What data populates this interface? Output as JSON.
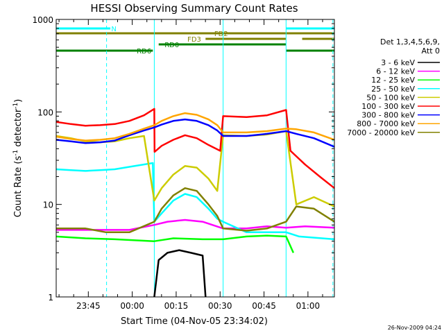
{
  "chart_data": {
    "type": "line",
    "title": "HESSI Observing Summary Count Rates",
    "xlabel": "Start Time (04-Nov-05 23:34:02)",
    "ylabel_main": "Count Rate (s",
    "ylabel_sup1": "-1",
    "ylabel_mid": " detector",
    "ylabel_sup2": "-1",
    "ylabel_end": ")",
    "y_scale": "log",
    "ylim": [
      1,
      1000
    ],
    "xlim_minutes_after_23_34_02": [
      0,
      95
    ],
    "x_ticks": [
      {
        "label": "23:45",
        "min": 10.97
      },
      {
        "label": "00:00",
        "min": 25.97
      },
      {
        "label": "00:15",
        "min": 40.97
      },
      {
        "label": "00:30",
        "min": 55.97
      },
      {
        "label": "00:45",
        "min": 70.97
      },
      {
        "label": "01:00",
        "min": 85.97
      }
    ],
    "y_ticks": [
      {
        "label": "1",
        "value": 1
      },
      {
        "label": "10",
        "value": 10
      },
      {
        "label": "100",
        "value": 100
      },
      {
        "label": "1000",
        "value": 1000
      }
    ],
    "legend": {
      "placement": "right",
      "header1": "Det 1,3,4,5,6,9,",
      "header2": "Att 0"
    },
    "flags": [
      {
        "label": "N",
        "color": "#00ffff",
        "segments": [
          [
            0,
            18.5
          ],
          [
            78.5,
            95
          ]
        ]
      },
      {
        "label": "FD2",
        "color": "#808000",
        "segments": [
          [
            0,
            95
          ]
        ]
      },
      {
        "label": "FD3",
        "color": "#808000",
        "segments": [
          [
            51,
            78.5
          ],
          [
            84,
            95
          ]
        ]
      },
      {
        "label": "RD0",
        "color": "#008000",
        "segments": [
          [
            35,
            57
          ],
          [
            57,
            78.5
          ]
        ]
      },
      {
        "label": "RD6",
        "color": "#008000",
        "segments": [
          [
            0,
            33
          ],
          [
            78.5,
            95
          ]
        ]
      }
    ],
    "vlines": [
      {
        "t": 17.2,
        "style": "dashed",
        "color": "#00ffff"
      },
      {
        "t": 33.5,
        "style": "solid",
        "color": "#00ffff"
      },
      {
        "t": 57.0,
        "style": "solid",
        "color": "#00ffff"
      },
      {
        "t": 78.5,
        "style": "solid",
        "color": "#00ffff"
      },
      {
        "t": 94.5,
        "style": "dashed",
        "color": "#00ffff"
      }
    ],
    "series": [
      {
        "name": "3 - 6 keV",
        "color": "#000000",
        "points": [
          [
            33.5,
            1
          ],
          [
            35,
            2.5
          ],
          [
            38,
            3
          ],
          [
            42,
            3.2
          ],
          [
            46,
            3
          ],
          [
            50,
            2.8
          ],
          [
            51,
            1
          ]
        ]
      },
      {
        "name": "6 - 12 keV",
        "color": "#ff00ff",
        "points": [
          [
            0,
            5.3
          ],
          [
            5,
            5.3
          ],
          [
            10,
            5.3
          ],
          [
            17,
            5.3
          ],
          [
            25,
            5.3
          ],
          [
            33.5,
            6
          ],
          [
            38,
            6.5
          ],
          [
            44,
            6.8
          ],
          [
            50,
            6.5
          ],
          [
            57,
            5.5
          ],
          [
            65,
            5.5
          ],
          [
            72,
            5.8
          ],
          [
            78.5,
            5.6
          ],
          [
            85,
            5.8
          ],
          [
            95,
            5.6
          ]
        ]
      },
      {
        "name": "12 - 25 keV",
        "color": "#00ff00",
        "points": [
          [
            0,
            4.5
          ],
          [
            10,
            4.3
          ],
          [
            20,
            4.2
          ],
          [
            33.5,
            4
          ],
          [
            40,
            4.3
          ],
          [
            50,
            4.2
          ],
          [
            57,
            4.2
          ],
          [
            65,
            4.5
          ],
          [
            72,
            4.6
          ],
          [
            78.5,
            4.5
          ],
          [
            81,
            3
          ]
        ]
      },
      {
        "name": "25 - 50 keV",
        "color": "#00ffff",
        "points": [
          [
            0,
            24
          ],
          [
            5,
            23.5
          ],
          [
            10,
            23
          ],
          [
            15,
            23.5
          ],
          [
            20,
            24
          ],
          [
            25,
            25.5
          ],
          [
            33,
            28
          ],
          [
            33.5,
            6.5
          ],
          [
            36,
            8
          ],
          [
            40,
            11
          ],
          [
            44,
            13
          ],
          [
            48,
            12
          ],
          [
            52,
            9
          ],
          [
            55,
            7
          ],
          [
            57,
            6.5
          ],
          [
            65,
            5
          ],
          [
            72,
            5
          ],
          [
            78.5,
            5
          ],
          [
            83,
            4.5
          ],
          [
            95,
            4.2
          ]
        ]
      },
      {
        "name": "50 - 100 keV",
        "color": "#cccc00",
        "points": [
          [
            0,
            55
          ],
          [
            5,
            52
          ],
          [
            10,
            48
          ],
          [
            15,
            47
          ],
          [
            20,
            48
          ],
          [
            25,
            52
          ],
          [
            30,
            55
          ],
          [
            33.5,
            11
          ],
          [
            36,
            15
          ],
          [
            40,
            21
          ],
          [
            44,
            26
          ],
          [
            48,
            25
          ],
          [
            52,
            19
          ],
          [
            55,
            14
          ],
          [
            57,
            56
          ],
          [
            65,
            55
          ],
          [
            72,
            57
          ],
          [
            78.5,
            62
          ],
          [
            82,
            10
          ],
          [
            88,
            12
          ],
          [
            95,
            9.5
          ]
        ]
      },
      {
        "name": "100 - 300 keV",
        "color": "#ff0000",
        "points": [
          [
            0,
            78
          ],
          [
            5,
            74
          ],
          [
            10,
            71
          ],
          [
            15,
            72
          ],
          [
            20,
            74
          ],
          [
            25,
            80
          ],
          [
            30,
            92
          ],
          [
            33.5,
            108
          ],
          [
            33.6,
            37
          ],
          [
            36,
            43
          ],
          [
            40,
            50
          ],
          [
            44,
            56
          ],
          [
            48,
            52
          ],
          [
            52,
            44
          ],
          [
            56,
            38
          ],
          [
            57,
            90
          ],
          [
            65,
            88
          ],
          [
            72,
            92
          ],
          [
            78.5,
            105
          ],
          [
            80,
            38
          ],
          [
            85,
            27
          ],
          [
            90,
            20
          ],
          [
            95,
            15
          ]
        ]
      },
      {
        "name": "300 - 800 keV",
        "color": "#0000ff",
        "points": [
          [
            0,
            50
          ],
          [
            5,
            48
          ],
          [
            10,
            46
          ],
          [
            15,
            47
          ],
          [
            20,
            49
          ],
          [
            25,
            56
          ],
          [
            30,
            63
          ],
          [
            33.5,
            68
          ],
          [
            36,
            73
          ],
          [
            40,
            80
          ],
          [
            44,
            83
          ],
          [
            48,
            80
          ],
          [
            52,
            72
          ],
          [
            55,
            63
          ],
          [
            57,
            55
          ],
          [
            65,
            55
          ],
          [
            72,
            58
          ],
          [
            78.5,
            62
          ],
          [
            82,
            58
          ],
          [
            88,
            52
          ],
          [
            95,
            42
          ]
        ]
      },
      {
        "name": "800 - 7000 keV",
        "color": "#ffa500",
        "points": [
          [
            0,
            54
          ],
          [
            5,
            51
          ],
          [
            10,
            49
          ],
          [
            15,
            50
          ],
          [
            20,
            52
          ],
          [
            25,
            58
          ],
          [
            30,
            66
          ],
          [
            33.5,
            72
          ],
          [
            36,
            80
          ],
          [
            40,
            90
          ],
          [
            44,
            97
          ],
          [
            48,
            93
          ],
          [
            52,
            83
          ],
          [
            55,
            72
          ],
          [
            57,
            60
          ],
          [
            65,
            60
          ],
          [
            72,
            62
          ],
          [
            78.5,
            66
          ],
          [
            82,
            65
          ],
          [
            88,
            60
          ],
          [
            95,
            50
          ]
        ]
      },
      {
        "name": "7000 - 20000 keV",
        "color": "#808000",
        "points": [
          [
            0,
            5.5
          ],
          [
            5,
            5.5
          ],
          [
            10,
            5.5
          ],
          [
            17,
            5
          ],
          [
            25,
            5
          ],
          [
            33.5,
            6.5
          ],
          [
            36,
            9
          ],
          [
            40,
            12.5
          ],
          [
            44,
            15
          ],
          [
            48,
            14
          ],
          [
            52,
            10
          ],
          [
            55,
            7.5
          ],
          [
            57,
            5.5
          ],
          [
            65,
            5.2
          ],
          [
            72,
            5.5
          ],
          [
            78.5,
            6.5
          ],
          [
            82,
            9.5
          ],
          [
            88,
            9
          ],
          [
            95,
            6.5
          ]
        ]
      }
    ]
  },
  "footer": {
    "timestamp": "26-Nov-2009 04:24"
  }
}
